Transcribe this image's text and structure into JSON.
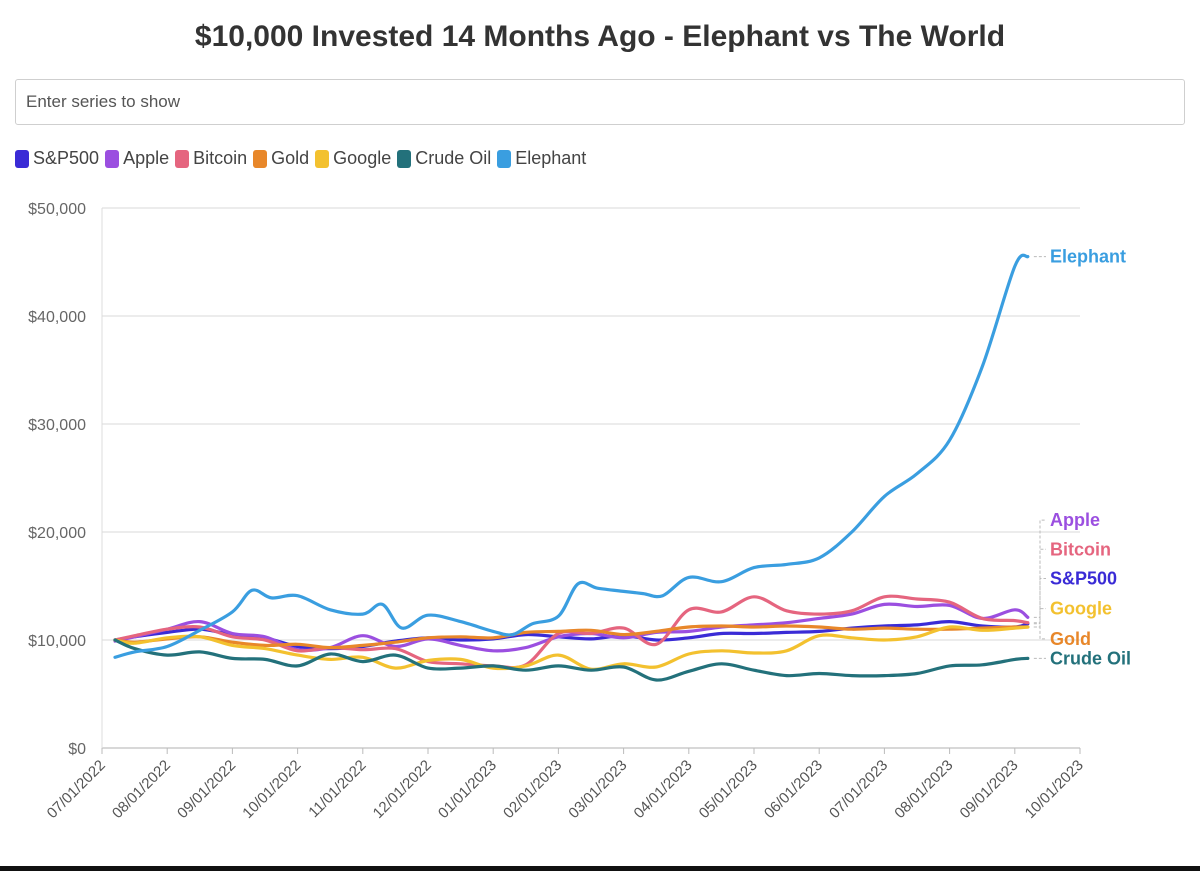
{
  "page": {
    "title": "$10,000 Invested 14 Months Ago - Elephant vs The World",
    "search_placeholder": "Enter series to show"
  },
  "chart_data": {
    "type": "line",
    "title": "$10,000 Invested 14 Months Ago - Elephant vs The World",
    "xlabel": "",
    "ylabel": "",
    "ylim": [
      0,
      50000
    ],
    "grid": true,
    "y_ticks": [
      0,
      10000,
      20000,
      30000,
      40000,
      50000
    ],
    "y_tick_labels": [
      "$0",
      "$10,000",
      "$20,000",
      "$30,000",
      "$40,000",
      "$50,000"
    ],
    "x_tick_labels": [
      "07/01/2022",
      "08/01/2022",
      "09/01/2022",
      "10/01/2022",
      "11/01/2022",
      "12/01/2022",
      "01/01/2023",
      "02/01/2023",
      "03/01/2023",
      "04/01/2023",
      "05/01/2023",
      "06/01/2023",
      "07/01/2023",
      "08/01/2023",
      "09/01/2023",
      "10/01/2023"
    ],
    "x_range": [
      0,
      15
    ],
    "x_unit": "months since 07/01/2022",
    "legend_position": "top-left",
    "series": [
      {
        "name": "S&P500",
        "label": "S&P500",
        "color": "#3a2bd6",
        "points": [
          [
            0.2,
            10000
          ],
          [
            0.5,
            10300
          ],
          [
            1,
            10700
          ],
          [
            1.5,
            11000
          ],
          [
            2,
            10500
          ],
          [
            2.5,
            10200
          ],
          [
            3,
            9400
          ],
          [
            3.5,
            9200
          ],
          [
            4,
            9400
          ],
          [
            4.5,
            9900
          ],
          [
            5,
            10200
          ],
          [
            5.5,
            10000
          ],
          [
            6,
            10100
          ],
          [
            6.5,
            10500
          ],
          [
            7,
            10300
          ],
          [
            7.5,
            10100
          ],
          [
            8,
            10400
          ],
          [
            8.5,
            10000
          ],
          [
            9,
            10200
          ],
          [
            9.5,
            10600
          ],
          [
            10,
            10600
          ],
          [
            10.5,
            10700
          ],
          [
            11,
            10800
          ],
          [
            11.5,
            11100
          ],
          [
            12,
            11300
          ],
          [
            12.5,
            11400
          ],
          [
            13,
            11700
          ],
          [
            13.5,
            11300
          ],
          [
            14,
            11200
          ],
          [
            14.2,
            11500
          ]
        ]
      },
      {
        "name": "Apple",
        "label": "Apple",
        "color": "#9b4fe0",
        "points": [
          [
            0.2,
            9900
          ],
          [
            0.5,
            10300
          ],
          [
            1,
            11000
          ],
          [
            1.5,
            11700
          ],
          [
            2,
            10600
          ],
          [
            2.5,
            10300
          ],
          [
            3,
            9100
          ],
          [
            3.5,
            9300
          ],
          [
            4,
            10400
          ],
          [
            4.5,
            9400
          ],
          [
            5,
            10100
          ],
          [
            5.5,
            9500
          ],
          [
            6,
            9000
          ],
          [
            6.5,
            9300
          ],
          [
            7,
            10300
          ],
          [
            7.5,
            10600
          ],
          [
            8,
            10200
          ],
          [
            8.5,
            10700
          ],
          [
            9,
            10800
          ],
          [
            9.5,
            11200
          ],
          [
            10,
            11400
          ],
          [
            10.5,
            11600
          ],
          [
            11,
            12000
          ],
          [
            11.5,
            12400
          ],
          [
            12,
            13300
          ],
          [
            12.5,
            13100
          ],
          [
            13,
            13200
          ],
          [
            13.5,
            12000
          ],
          [
            14,
            12800
          ],
          [
            14.2,
            12100
          ]
        ]
      },
      {
        "name": "Bitcoin",
        "label": "Bitcoin",
        "color": "#e5657f",
        "points": [
          [
            0.2,
            10000
          ],
          [
            0.5,
            10400
          ],
          [
            1,
            11000
          ],
          [
            1.5,
            11200
          ],
          [
            2,
            10300
          ],
          [
            2.5,
            10000
          ],
          [
            3,
            9000
          ],
          [
            3.5,
            9300
          ],
          [
            4,
            9100
          ],
          [
            4.5,
            9200
          ],
          [
            5,
            8000
          ],
          [
            5.5,
            7800
          ],
          [
            6,
            7600
          ],
          [
            6.5,
            7700
          ],
          [
            7,
            10600
          ],
          [
            7.5,
            10600
          ],
          [
            8,
            11100
          ],
          [
            8.5,
            9600
          ],
          [
            9,
            12800
          ],
          [
            9.5,
            12600
          ],
          [
            10,
            14000
          ],
          [
            10.5,
            12700
          ],
          [
            11,
            12400
          ],
          [
            11.5,
            12700
          ],
          [
            12,
            14000
          ],
          [
            12.5,
            13800
          ],
          [
            13,
            13500
          ],
          [
            13.5,
            12000
          ],
          [
            14,
            11800
          ],
          [
            14.2,
            11600
          ]
        ]
      },
      {
        "name": "Gold",
        "label": "Gold",
        "color": "#e8872a",
        "points": [
          [
            0.2,
            10000
          ],
          [
            0.5,
            9800
          ],
          [
            1,
            10100
          ],
          [
            1.5,
            10300
          ],
          [
            2,
            9800
          ],
          [
            2.5,
            9500
          ],
          [
            3,
            9600
          ],
          [
            3.5,
            9300
          ],
          [
            4,
            9500
          ],
          [
            4.5,
            9800
          ],
          [
            5,
            10200
          ],
          [
            5.5,
            10300
          ],
          [
            6,
            10200
          ],
          [
            6.5,
            10700
          ],
          [
            7,
            10800
          ],
          [
            7.5,
            10900
          ],
          [
            8,
            10500
          ],
          [
            8.5,
            10800
          ],
          [
            9,
            11200
          ],
          [
            9.5,
            11300
          ],
          [
            10,
            11200
          ],
          [
            10.5,
            11300
          ],
          [
            11,
            11200
          ],
          [
            11.5,
            11000
          ],
          [
            12,
            11100
          ],
          [
            12.5,
            11000
          ],
          [
            13,
            11000
          ],
          [
            13.5,
            11100
          ],
          [
            14,
            11200
          ],
          [
            14.2,
            11200
          ]
        ]
      },
      {
        "name": "Google",
        "label": "Google",
        "color": "#f3c12f",
        "points": [
          [
            0.2,
            10000
          ],
          [
            0.5,
            9700
          ],
          [
            1,
            10200
          ],
          [
            1.5,
            10300
          ],
          [
            2,
            9500
          ],
          [
            2.5,
            9200
          ],
          [
            3,
            8600
          ],
          [
            3.5,
            8200
          ],
          [
            4,
            8400
          ],
          [
            4.5,
            7400
          ],
          [
            5,
            8100
          ],
          [
            5.5,
            8200
          ],
          [
            6,
            7400
          ],
          [
            6.5,
            7600
          ],
          [
            7,
            8600
          ],
          [
            7.5,
            7300
          ],
          [
            8,
            7800
          ],
          [
            8.5,
            7500
          ],
          [
            9,
            8700
          ],
          [
            9.5,
            9000
          ],
          [
            10,
            8800
          ],
          [
            10.5,
            9000
          ],
          [
            11,
            10400
          ],
          [
            11.5,
            10200
          ],
          [
            12,
            10000
          ],
          [
            12.5,
            10300
          ],
          [
            13,
            11200
          ],
          [
            13.5,
            10900
          ],
          [
            14,
            11100
          ],
          [
            14.2,
            11200
          ]
        ]
      },
      {
        "name": "Crude Oil",
        "label": "Crude Oil",
        "color": "#23717b",
        "points": [
          [
            0.2,
            10000
          ],
          [
            0.5,
            9200
          ],
          [
            1,
            8600
          ],
          [
            1.5,
            8900
          ],
          [
            2,
            8300
          ],
          [
            2.5,
            8200
          ],
          [
            3,
            7600
          ],
          [
            3.5,
            8700
          ],
          [
            4,
            8000
          ],
          [
            4.5,
            8600
          ],
          [
            5,
            7400
          ],
          [
            5.5,
            7400
          ],
          [
            6,
            7600
          ],
          [
            6.5,
            7200
          ],
          [
            7,
            7600
          ],
          [
            7.5,
            7200
          ],
          [
            8,
            7500
          ],
          [
            8.5,
            6300
          ],
          [
            9,
            7100
          ],
          [
            9.5,
            7800
          ],
          [
            10,
            7200
          ],
          [
            10.5,
            6700
          ],
          [
            11,
            6900
          ],
          [
            11.5,
            6700
          ],
          [
            12,
            6700
          ],
          [
            12.5,
            6900
          ],
          [
            13,
            7600
          ],
          [
            13.5,
            7700
          ],
          [
            14,
            8200
          ],
          [
            14.2,
            8300
          ]
        ]
      },
      {
        "name": "Elephant",
        "label": "Elephant",
        "color": "#3a9ee0",
        "points": [
          [
            0.2,
            8400
          ],
          [
            0.5,
            8900
          ],
          [
            1,
            9400
          ],
          [
            1.5,
            10900
          ],
          [
            2,
            12600
          ],
          [
            2.3,
            14600
          ],
          [
            2.6,
            13900
          ],
          [
            3,
            14100
          ],
          [
            3.5,
            12800
          ],
          [
            4,
            12400
          ],
          [
            4.3,
            13300
          ],
          [
            4.6,
            11100
          ],
          [
            5,
            12300
          ],
          [
            5.5,
            11700
          ],
          [
            6,
            10800
          ],
          [
            6.3,
            10500
          ],
          [
            6.6,
            11500
          ],
          [
            7,
            12200
          ],
          [
            7.3,
            15200
          ],
          [
            7.6,
            14800
          ],
          [
            8,
            14500
          ],
          [
            8.3,
            14300
          ],
          [
            8.6,
            14100
          ],
          [
            9,
            15800
          ],
          [
            9.5,
            15400
          ],
          [
            10,
            16700
          ],
          [
            10.5,
            17000
          ],
          [
            11,
            17600
          ],
          [
            11.5,
            20000
          ],
          [
            12,
            23300
          ],
          [
            12.5,
            25400
          ],
          [
            13,
            28500
          ],
          [
            13.5,
            35300
          ],
          [
            14,
            44600
          ],
          [
            14.2,
            45500
          ]
        ]
      }
    ],
    "end_labels": [
      {
        "text": "Elephant",
        "series": "Elephant",
        "value": 45500
      },
      {
        "text": "Apple",
        "series": "Apple",
        "value": 21100
      },
      {
        "text": "Bitcoin",
        "series": "Bitcoin",
        "value": 18400
      },
      {
        "text": "S&P500",
        "series": "S&P500",
        "value": 15700
      },
      {
        "text": "Google",
        "series": "Google",
        "value": 12900
      },
      {
        "text": "Gold",
        "series": "Gold",
        "value": 10100
      },
      {
        "text": "Crude Oil",
        "series": "Crude Oil",
        "value": 8300
      }
    ]
  }
}
